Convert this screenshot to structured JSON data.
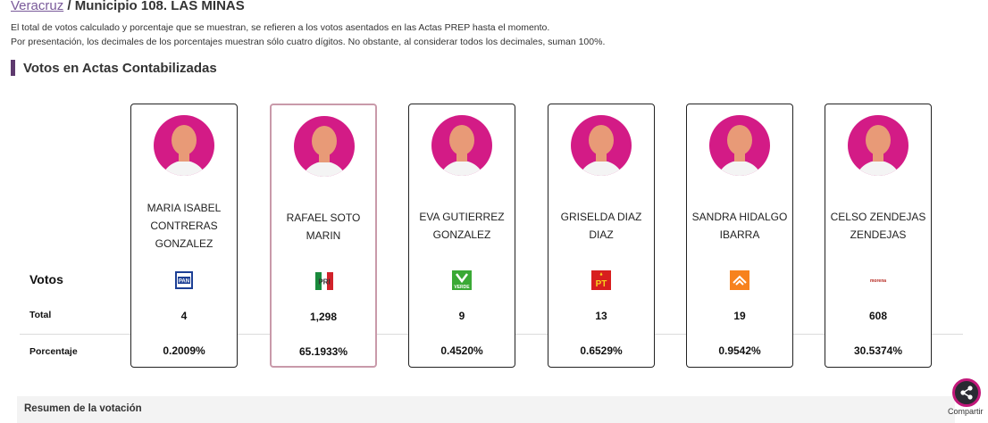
{
  "breadcrumb": {
    "link": "Veracruz",
    "separator": " / ",
    "current": "Municipio 108. LAS MINAS"
  },
  "notes": [
    "El total de votos calculado y porcentaje que se muestran, se refieren a los votos asentados en las Actas PREP hasta el momento.",
    "Por presentación, los decimales de los porcentajes muestran sólo cuatro dígitos. No obstante, al considerar todos los decimales, suman 100%."
  ],
  "section_title": "Votos en Actas Contabilizadas",
  "row_labels": {
    "votos": "Votos",
    "total": "Total",
    "porcentaje": "Porcentaje"
  },
  "candidates": [
    {
      "name": "MARIA ISABEL CONTRERAS GONZALEZ",
      "party": "pan-logo",
      "party_text": "PAN",
      "total": "4",
      "pct": "0.2009%"
    },
    {
      "name": "RAFAEL SOTO MARIN",
      "party": "pri-logo",
      "party_text": "PRI",
      "total": "1,298",
      "pct": "65.1933%"
    },
    {
      "name": "EVA GUTIERREZ GONZALEZ",
      "party": "pvem-logo",
      "party_text": "VERDE",
      "total": "9",
      "pct": "0.4520%"
    },
    {
      "name": "GRISELDA DIAZ DIAZ",
      "party": "pt-logo",
      "party_text": "PT",
      "total": "13",
      "pct": "0.6529%"
    },
    {
      "name": "SANDRA HIDALGO IBARRA",
      "party": "mc-logo",
      "party_text": "",
      "total": "19",
      "pct": "0.9542%"
    },
    {
      "name": "CELSO ZENDEJAS ZENDEJAS",
      "party": "morena-logo",
      "party_text": "morena",
      "total": "608",
      "pct": "30.5374%"
    }
  ],
  "resumen_label": "Resumen de la votación",
  "share_label": "Compartir",
  "colors": {
    "accent": "#5e3a6e",
    "avatar_bg": "#d31b86",
    "winner_border": "#c99aaa"
  }
}
